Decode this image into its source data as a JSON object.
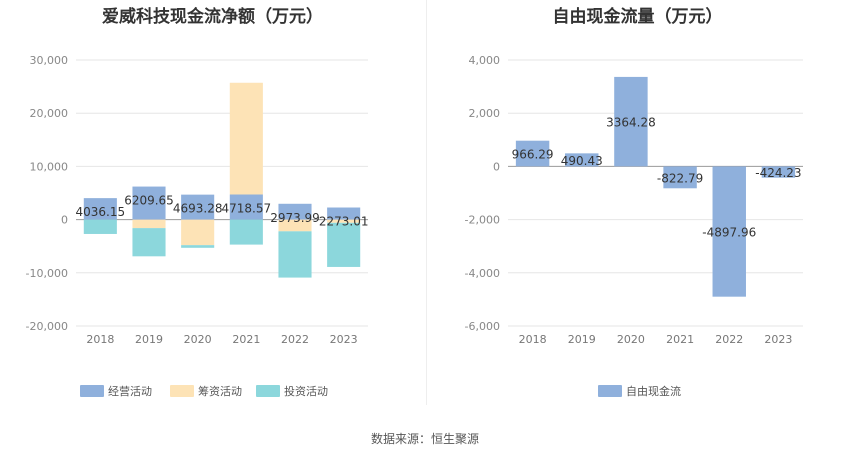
{
  "source_text": "数据来源：恒生聚源",
  "chart_data": [
    {
      "type": "bar",
      "stacked": true,
      "title": "爱威科技现金流净额（万元）",
      "categories": [
        "2018",
        "2019",
        "2020",
        "2021",
        "2022",
        "2023"
      ],
      "ylim": [
        -20000,
        30000
      ],
      "yticks": [
        -20000,
        -10000,
        0,
        10000,
        20000,
        30000
      ],
      "ytick_labels": [
        "-20,000",
        "-10,000",
        "0",
        "10,000",
        "20,000",
        "30,000"
      ],
      "legend_position": "bottom-left",
      "series": [
        {
          "name": "经营活动",
          "color": "#8fb0dc",
          "values": [
            4036.15,
            6209.65,
            4693.28,
            4718.57,
            2973.99,
            2273.01
          ]
        },
        {
          "name": "筹资活动",
          "color": "#fde3b6",
          "values": [
            0,
            -1600,
            -4800,
            21000,
            -2200,
            -600
          ]
        },
        {
          "name": "投资活动",
          "color": "#8cd7dc",
          "values": [
            -2700,
            -5300,
            -500,
            -4700,
            -8700,
            -8300
          ]
        }
      ],
      "data_labels": [
        "4036.15",
        "6209.65",
        "4693.28",
        "4718.57",
        "2973.99",
        "2273.01"
      ]
    },
    {
      "type": "bar",
      "title": "自由现金流量（万元）",
      "categories": [
        "2018",
        "2019",
        "2020",
        "2021",
        "2022",
        "2023"
      ],
      "ylim": [
        -6000,
        4000
      ],
      "yticks": [
        -6000,
        -4000,
        -2000,
        0,
        2000,
        4000
      ],
      "ytick_labels": [
        "-6,000",
        "-4,000",
        "-2,000",
        "0",
        "2,000",
        "4,000"
      ],
      "legend_position": "bottom-center",
      "series": [
        {
          "name": "自由现金流",
          "color": "#8fb0dc",
          "values": [
            966.29,
            490.43,
            3364.28,
            -822.79,
            -4897.96,
            -424.23
          ]
        }
      ],
      "data_labels": [
        "966.29",
        "490.43",
        "3364.28",
        "-822.79",
        "-4897.96",
        "-424.23"
      ]
    }
  ]
}
